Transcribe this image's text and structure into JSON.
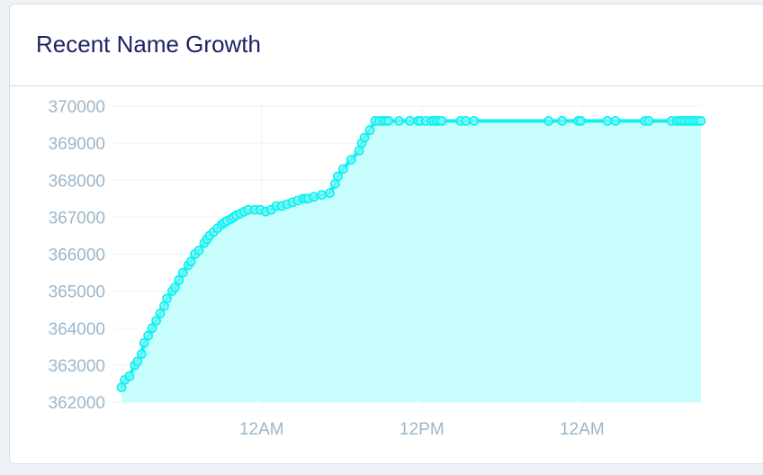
{
  "card": {
    "title": "Recent Name Growth"
  },
  "chart_data": {
    "type": "area",
    "title": "",
    "xlabel": "",
    "ylabel": "",
    "ylim": [
      362000,
      370000
    ],
    "yticks": [
      362000,
      363000,
      364000,
      365000,
      366000,
      367000,
      368000,
      369000,
      370000
    ],
    "xtick_labels": [
      "12AM",
      "12PM",
      "12AM"
    ],
    "grid": true,
    "legend": "none",
    "colors": {
      "line": "#10f0f0",
      "fill": "#c7fdfd",
      "marker_fill": "#8ff8f8",
      "grid": "#eef3f7",
      "tick_text": "#9db6c9"
    },
    "series": [
      {
        "x": [
          0.0,
          0.12,
          0.3,
          0.5,
          0.6,
          0.75,
          0.85,
          1.0,
          1.15,
          1.3,
          1.45,
          1.6,
          1.7,
          1.9,
          2.0,
          2.15,
          2.3,
          2.5,
          2.6,
          2.75,
          2.9,
          3.1,
          3.2,
          3.3,
          3.45,
          3.6,
          3.75,
          3.85,
          3.95,
          4.1,
          4.2,
          4.3,
          4.45,
          4.6,
          4.75,
          5.0,
          5.2,
          5.4,
          5.6,
          5.8,
          6.0,
          6.2,
          6.4,
          6.6,
          6.8,
          6.9,
          7.0,
          7.2,
          7.5,
          7.8,
          8.0,
          8.1,
          8.3,
          8.6,
          8.9,
          9.0,
          9.1,
          9.3,
          9.5,
          9.65,
          9.8,
          9.9,
          10.0,
          10.4,
          10.8,
          11.1,
          11.2,
          11.4,
          11.6,
          11.7,
          11.8,
          11.9,
          12.0,
          12.7,
          12.9,
          13.2,
          16.0,
          16.5,
          17.1,
          17.2,
          18.2,
          18.5,
          19.6,
          19.75,
          20.6,
          20.8,
          20.9,
          21.0,
          21.1,
          21.2,
          21.3,
          21.4,
          21.5,
          21.6,
          21.7
        ],
        "y": [
          362400,
          362600,
          362700,
          363000,
          363100,
          363300,
          363600,
          363800,
          364000,
          364200,
          364400,
          364600,
          364800,
          365000,
          365100,
          365300,
          365500,
          365700,
          365800,
          366000,
          366100,
          366300,
          366400,
          366500,
          366600,
          366700,
          366800,
          366850,
          366900,
          366950,
          367000,
          367050,
          367100,
          367150,
          367200,
          367200,
          367200,
          367150,
          367200,
          367300,
          367300,
          367350,
          367400,
          367450,
          367500,
          367500,
          367500,
          367550,
          367600,
          367650,
          367900,
          368100,
          368300,
          368550,
          368800,
          369000,
          369150,
          369350,
          369600,
          369600,
          369600,
          369600,
          369600,
          369600,
          369600,
          369600,
          369600,
          369600,
          369600,
          369600,
          369600,
          369600,
          369600,
          369600,
          369600,
          369600,
          369600,
          369600,
          369600,
          369600,
          369600,
          369600,
          369600,
          369600,
          369600,
          369600,
          369600,
          369600,
          369600,
          369600,
          369600,
          369600,
          369600,
          369600,
          369600
        ]
      }
    ]
  }
}
